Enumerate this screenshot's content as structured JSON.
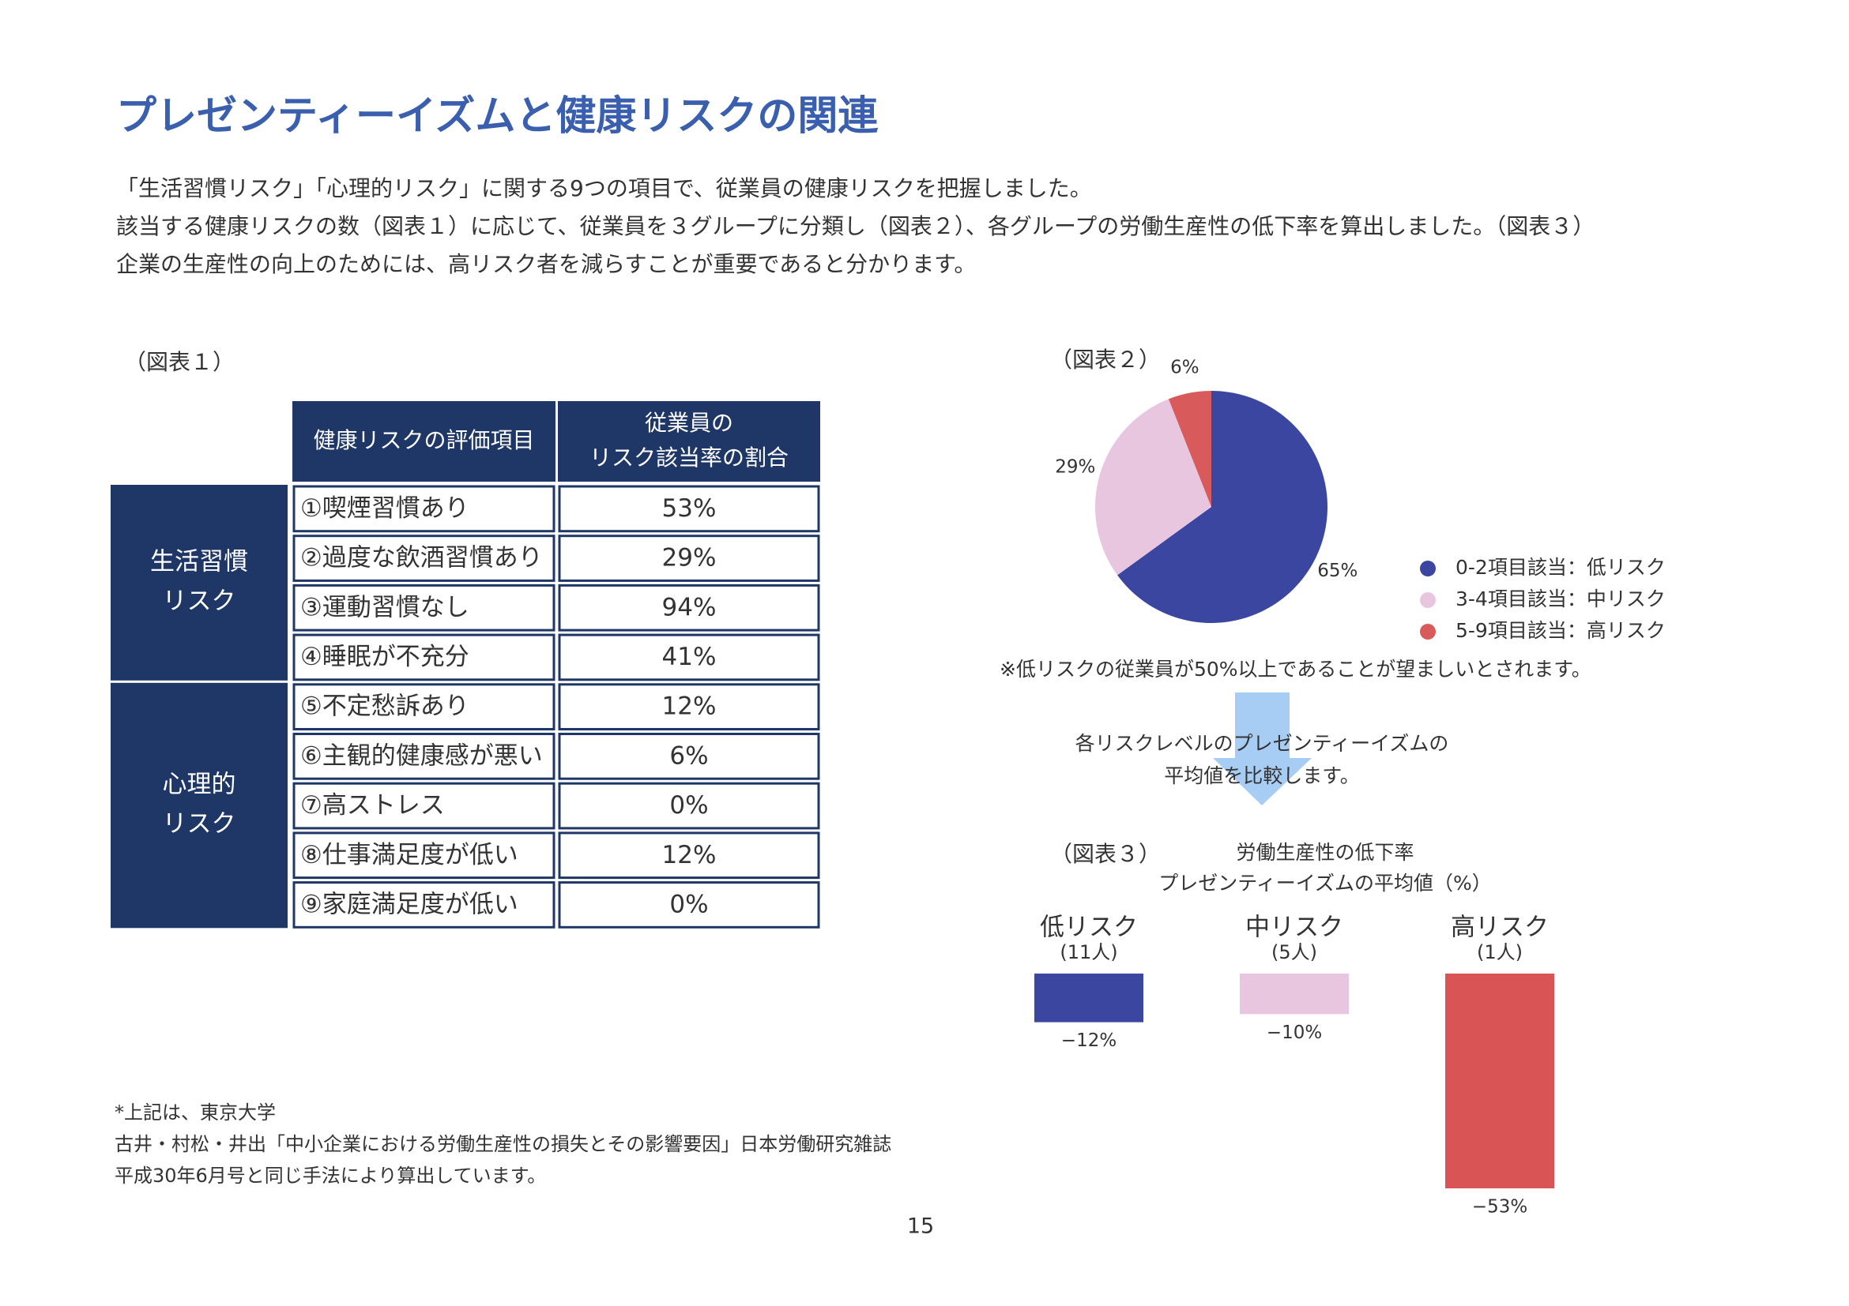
{
  "title": "プレゼンティーイズムと健康リスクの関連",
  "intro": [
    "「生活習慣リスク」「心理的リスク」に関する9つの項目で、従業員の健康リスクを把握しました。",
    "該当する健康リスクの数（図表１）に応じて、従業員を３グループに分類し（図表２）、各グループの労働生産性の低下率を算出しました。（図表３）",
    "企業の生産性の向上のためには、高リスク者を減らすことが重要であると分かります。"
  ],
  "table": {
    "label": "（図表１）",
    "header": [
      [
        "健康リスクの評価項目"
      ],
      [
        "従業員の",
        "リスク該当率の割合"
      ]
    ],
    "groups": [
      {
        "label": [
          "生活習慣",
          "リスク"
        ],
        "rows": [
          [
            "①喫煙習慣あり",
            "53%"
          ],
          [
            "②過度な飲酒習慣あり",
            "29%"
          ],
          [
            "③運動習慣なし",
            "94%"
          ],
          [
            "④睡眠が不充分",
            "41%"
          ]
        ]
      },
      {
        "label": [
          "心理的",
          "リスク"
        ],
        "rows": [
          [
            "⑤不定愁訴あり",
            "12%"
          ],
          [
            "⑥主観的健康感が悪い",
            "6%"
          ],
          [
            "⑦高ストレス",
            "0%"
          ],
          [
            "⑧仕事満足度が低い",
            "12%"
          ],
          [
            "⑨家庭満足度が低い",
            "0%"
          ]
        ]
      }
    ]
  },
  "pie_chart": {
    "type": "pie",
    "label": "（図表２）",
    "labels": [
      "0-2項目該当：低リスク",
      "3-4項目該当：中リスク",
      "5-9項目該当：高リスク"
    ],
    "values": [
      65,
      29,
      6
    ],
    "value_labels": [
      "65%",
      "29%",
      "6%"
    ],
    "colors": [
      "#3a46a0",
      "#e8c6df",
      "#d95a5a"
    ],
    "note": "※低リスクの従業員が50%以上であることが望ましいとされます。"
  },
  "arrow_text": [
    "各リスクレベルのプレゼンティーイズムの",
    "平均値を比較します。"
  ],
  "bar_chart": {
    "type": "bar",
    "label": "（図表３）",
    "title": [
      "労働生産性の低下率",
      "プレゼンティーイズムの平均値（%）"
    ],
    "categories": [
      "低リスク",
      "中リスク",
      "高リスク"
    ],
    "counts": [
      "(11人)",
      "(5人)",
      "(1人)"
    ],
    "values": [
      -12,
      -10,
      -53
    ],
    "value_labels": [
      "−12%",
      "−10%",
      "−53%"
    ],
    "colors": [
      "#3a46a0",
      "#e8c6df",
      "#d95454"
    ]
  },
  "footnote": [
    "*上記は、東京大学",
    "古井・村松・井出「中小企業における労働生産性の損失とその影響要因」日本労働研究雑誌",
    "平成30年6月号と同じ手法により算出しています。"
  ],
  "page_number": "15"
}
